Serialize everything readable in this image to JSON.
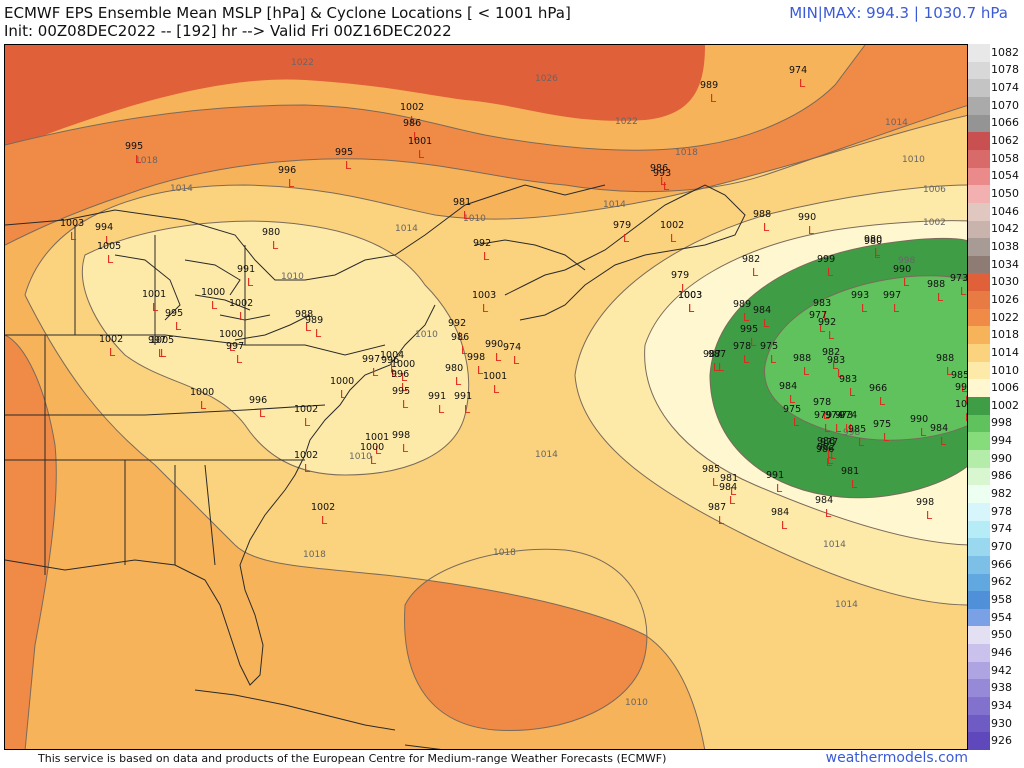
{
  "header": {
    "title_line1": "ECMWF EPS Ensemble Mean MSLP [hPa] & Cyclone Locations [ < 1001 hPa]",
    "title_line2": "Init: 00Z08DEC2022 -- [192] hr --> Valid Fri 00Z16DEC2022",
    "minmax": "MIN|MAX: 994.3 | 1030.7 hPa"
  },
  "footer": {
    "credit": "This service is based on data and products of the European Centre for Medium-range Weather Forecasts (ECMWF)",
    "site": "weathermodels.com"
  },
  "colors": {
    "c1026": "#e0603a",
    "c1022": "#f08a47",
    "c1018": "#f6b35a",
    "c1014": "#fbd27d",
    "c1010": "#fdeaa8",
    "c1006": "#fff7cf",
    "c1002": "#3f9e45",
    "c998": "#5fc25d",
    "low_marker": "#e0261b"
  },
  "colorbar": {
    "values": [
      "1082",
      "1078",
      "1074",
      "1070",
      "1066",
      "1062",
      "1058",
      "1054",
      "1050",
      "1046",
      "1042",
      "1038",
      "1034",
      "1030",
      "1026",
      "1022",
      "1018",
      "1014",
      "1010",
      "1006",
      "1002",
      "998",
      "994",
      "990",
      "986",
      "982",
      "978",
      "974",
      "970",
      "966",
      "962",
      "958",
      "954",
      "950",
      "946",
      "942",
      "938",
      "934",
      "930",
      "926"
    ],
    "colors": [
      "#e8e8e8",
      "#d8d8d8",
      "#c4c4c4",
      "#aaaaaa",
      "#949494",
      "#c85050",
      "#d96a6a",
      "#ea8a8a",
      "#f3b0b0",
      "#e0c8c0",
      "#c8b4ac",
      "#a89a94",
      "#8e7c74",
      "#e0603a",
      "#e87a44",
      "#f08a47",
      "#f6b35a",
      "#fbd27d",
      "#fdeaa8",
      "#fff7cf",
      "#3f9e45",
      "#5fc25d",
      "#86dc7a",
      "#b4ecaa",
      "#d8f6d0",
      "#ecfff0",
      "#d6f6fb",
      "#b6ecf6",
      "#9ad8ef",
      "#7cc0e8",
      "#62a8e0",
      "#4f90d8",
      "#7aa0e6",
      "#e4e0f4",
      "#cac2ec",
      "#aea4e2",
      "#968ad8",
      "#8272ce",
      "#6e5cc4",
      "#5e48bb"
    ]
  },
  "isobars": {
    "labels": [
      "1022",
      "1026",
      "1022",
      "1018",
      "1014",
      "1010",
      "1018",
      "1014",
      "1014",
      "1010",
      "1010",
      "1014",
      "1010",
      "1006",
      "1002",
      "998",
      "998",
      "1010",
      "1014",
      "1018",
      "1014",
      "1018",
      "1014",
      "1010"
    ]
  },
  "lows": [
    {
      "v": "974"
    },
    {
      "v": "989"
    },
    {
      "v": "1002"
    },
    {
      "v": "986"
    },
    {
      "v": "1001"
    },
    {
      "v": "995"
    },
    {
      "v": "996"
    },
    {
      "v": "995"
    },
    {
      "v": "986"
    },
    {
      "v": "993"
    },
    {
      "v": "981"
    },
    {
      "v": "1003"
    },
    {
      "v": "994"
    },
    {
      "v": "1005"
    },
    {
      "v": "980"
    },
    {
      "v": "991"
    },
    {
      "v": "992"
    },
    {
      "v": "979"
    },
    {
      "v": "1002"
    },
    {
      "v": "988"
    },
    {
      "v": "990"
    },
    {
      "v": "980"
    },
    {
      "v": "1001"
    },
    {
      "v": "1000"
    },
    {
      "v": "1002"
    },
    {
      "v": "995"
    },
    {
      "v": "1000"
    },
    {
      "v": "997"
    },
    {
      "v": "1005"
    },
    {
      "v": "988"
    },
    {
      "v": "989"
    },
    {
      "v": "992"
    },
    {
      "v": "986"
    },
    {
      "v": "1002"
    },
    {
      "v": "997"
    },
    {
      "v": "1003"
    },
    {
      "v": "996"
    },
    {
      "v": "990"
    },
    {
      "v": "974"
    },
    {
      "v": "998"
    },
    {
      "v": "980"
    },
    {
      "v": "1001"
    },
    {
      "v": "997"
    },
    {
      "v": "1004"
    },
    {
      "v": "1000"
    },
    {
      "v": "996"
    },
    {
      "v": "995"
    },
    {
      "v": "991"
    },
    {
      "v": "991"
    },
    {
      "v": "1000"
    },
    {
      "v": "1000"
    },
    {
      "v": "1002"
    },
    {
      "v": "996"
    },
    {
      "v": "1001"
    },
    {
      "v": "1000"
    },
    {
      "v": "998"
    },
    {
      "v": "1002"
    },
    {
      "v": "1002"
    },
    {
      "v": "1003"
    },
    {
      "v": "979"
    },
    {
      "v": "982"
    },
    {
      "v": "999"
    },
    {
      "v": "980"
    },
    {
      "v": "990"
    },
    {
      "v": "988"
    },
    {
      "v": "973"
    },
    {
      "v": "993"
    },
    {
      "v": "997"
    },
    {
      "v": "989"
    },
    {
      "v": "984"
    },
    {
      "v": "983"
    },
    {
      "v": "977"
    },
    {
      "v": "995"
    },
    {
      "v": "992"
    },
    {
      "v": "987"
    },
    {
      "v": "978"
    },
    {
      "v": "975"
    },
    {
      "v": "988"
    },
    {
      "v": "983"
    },
    {
      "v": "982"
    },
    {
      "v": "988"
    },
    {
      "v": "985"
    },
    {
      "v": "983"
    },
    {
      "v": "966"
    },
    {
      "v": "997"
    },
    {
      "v": "1000"
    },
    {
      "v": "984"
    },
    {
      "v": "978"
    },
    {
      "v": "974"
    },
    {
      "v": "975"
    },
    {
      "v": "979"
    },
    {
      "v": "974"
    },
    {
      "v": "973"
    },
    {
      "v": "975"
    },
    {
      "v": "990"
    },
    {
      "v": "984"
    },
    {
      "v": "986"
    },
    {
      "v": "977"
    },
    {
      "v": "986"
    },
    {
      "v": "985"
    },
    {
      "v": "982"
    },
    {
      "v": "981"
    },
    {
      "v": "985"
    },
    {
      "v": "991"
    },
    {
      "v": "981"
    },
    {
      "v": "984"
    },
    {
      "v": "987"
    },
    {
      "v": "984"
    },
    {
      "v": "984"
    },
    {
      "v": "998"
    },
    {
      "v": "987"
    },
    {
      "v": "1003"
    },
    {
      "v": "986"
    }
  ]
}
